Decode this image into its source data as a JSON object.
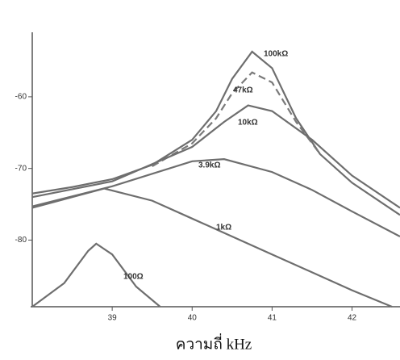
{
  "chart_data": {
    "type": "line",
    "x_label": "ความถี่ kHz",
    "xlim": [
      38,
      42.6
    ],
    "xticks": [
      39,
      40,
      41,
      42
    ],
    "ylim": [
      -89.3,
      -51
    ],
    "yticks": [
      -60,
      -70,
      -80
    ],
    "series": [
      {
        "name": "100kΩ",
        "color": "#6e6e6e",
        "dashed": false,
        "x": [
          38,
          38.5,
          39,
          39.5,
          40,
          40.3,
          40.5,
          40.75,
          41,
          41.3,
          41.6,
          42,
          42.6
        ],
        "values": [
          -73.5,
          -72.6,
          -71.5,
          -69.5,
          -66,
          -62,
          -57.5,
          -53.7,
          -56,
          -63,
          -68,
          -72,
          -76.5
        ]
      },
      {
        "name": "47kΩ",
        "color": "#7a7a7a",
        "dashed": true,
        "x": [
          39.5,
          40,
          40.3,
          40.5,
          40.75,
          41,
          41.3,
          41.6
        ],
        "values": [
          -69.7,
          -66.5,
          -63,
          -59.5,
          -56.6,
          -58,
          -63.5,
          -68
        ]
      },
      {
        "name": "10kΩ",
        "color": "#6e6e6e",
        "dashed": false,
        "x": [
          38,
          39,
          40,
          40.4,
          40.7,
          41,
          41.5,
          42,
          42.6
        ],
        "values": [
          -74,
          -71.8,
          -67,
          -63.5,
          -61.2,
          -62,
          -66,
          -71,
          -75.5
        ]
      },
      {
        "name": "3.9kΩ",
        "color": "#6e6e6e",
        "dashed": false,
        "x": [
          38,
          39,
          40,
          40.4,
          41,
          41.5,
          42,
          42.6
        ],
        "values": [
          -75.3,
          -72.5,
          -69,
          -68.7,
          -70.5,
          -73,
          -76,
          -79.5
        ]
      },
      {
        "name": "1kΩ",
        "color": "#6e6e6e",
        "dashed": false,
        "x": [
          38,
          38.9,
          39.5,
          40,
          40.5,
          41,
          41.5,
          42,
          42.5
        ],
        "values": [
          -75.5,
          -72.8,
          -74.5,
          -77,
          -79.5,
          -82,
          -84.5,
          -87,
          -89.3
        ]
      },
      {
        "name": "100Ω",
        "color": "#6e6e6e",
        "dashed": false,
        "x": [
          38,
          38.4,
          38.7,
          38.8,
          39,
          39.3,
          39.6
        ],
        "values": [
          -89.3,
          -86,
          -81.5,
          -80.5,
          -82,
          -86.5,
          -89.3
        ]
      }
    ]
  }
}
